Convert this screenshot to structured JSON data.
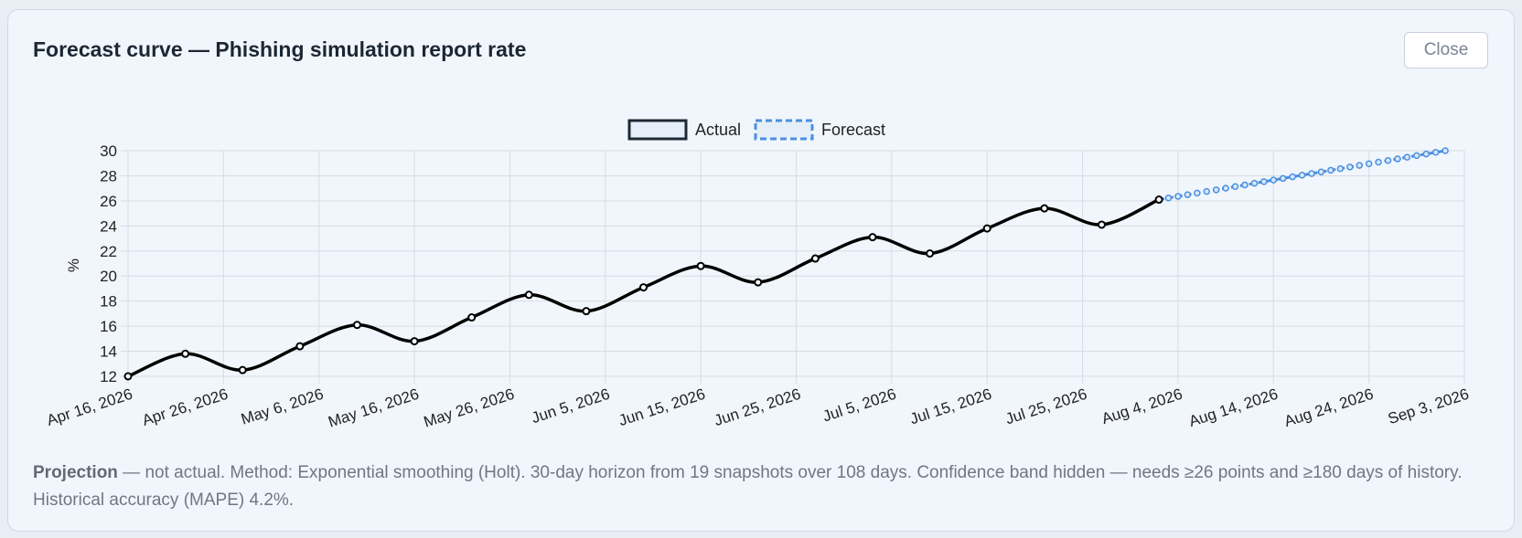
{
  "dialog": {
    "title": "Forecast curve — Phishing simulation report rate",
    "close_label": "Close"
  },
  "note": {
    "lead": "Projection",
    "text": " — not actual. Method: Exponential smoothing (Holt). 30-day horizon from 19 snapshots over 108 days. Confidence band hidden — needs ≥26 points and ≥180 days of history. Historical accuracy (MAPE) 4.2%."
  },
  "colors": {
    "actual": "#000000",
    "forecast": "#4a90e2",
    "grid": "#d7dce3"
  },
  "chart_data": {
    "type": "line",
    "title": "",
    "xlabel": "",
    "ylabel": "%",
    "ylim": [
      12,
      30
    ],
    "yticks": [
      12,
      14,
      16,
      18,
      20,
      22,
      24,
      26,
      28,
      30
    ],
    "xlim": [
      "2026-04-16",
      "2026-09-03"
    ],
    "xtick_labels": [
      "Apr 16, 2026",
      "Apr 26, 2026",
      "May 6, 2026",
      "May 16, 2026",
      "May 26, 2026",
      "Jun 5, 2026",
      "Jun 15, 2026",
      "Jun 25, 2026",
      "Jul 5, 2026",
      "Jul 15, 2026",
      "Jul 25, 2026",
      "Aug 4, 2026",
      "Aug 14, 2026",
      "Aug 24, 2026",
      "Sep 3, 2026"
    ],
    "grid": true,
    "legend_position": "top-center",
    "series": [
      {
        "name": "Actual",
        "style": "solid",
        "x": [
          "2026-04-16",
          "2026-04-22",
          "2026-04-28",
          "2026-05-04",
          "2026-05-10",
          "2026-05-16",
          "2026-05-22",
          "2026-05-28",
          "2026-06-03",
          "2026-06-09",
          "2026-06-15",
          "2026-06-21",
          "2026-06-27",
          "2026-07-03",
          "2026-07-09",
          "2026-07-15",
          "2026-07-21",
          "2026-07-27",
          "2026-08-02"
        ],
        "y": [
          12.0,
          13.8,
          12.5,
          14.4,
          16.1,
          14.8,
          16.7,
          18.5,
          17.2,
          19.1,
          20.8,
          19.5,
          21.4,
          23.1,
          21.8,
          23.8,
          25.4,
          24.1,
          26.1
        ]
      },
      {
        "name": "Forecast",
        "style": "dashed",
        "x": [
          "2026-08-02",
          "2026-08-03",
          "2026-08-04",
          "2026-08-05",
          "2026-08-06",
          "2026-08-07",
          "2026-08-08",
          "2026-08-09",
          "2026-08-10",
          "2026-08-11",
          "2026-08-12",
          "2026-08-13",
          "2026-08-14",
          "2026-08-15",
          "2026-08-16",
          "2026-08-17",
          "2026-08-18",
          "2026-08-19",
          "2026-08-20",
          "2026-08-21",
          "2026-08-22",
          "2026-08-23",
          "2026-08-24",
          "2026-08-25",
          "2026-08-26",
          "2026-08-27",
          "2026-08-28",
          "2026-08-29",
          "2026-08-30",
          "2026-08-31",
          "2026-09-01"
        ],
        "y": [
          26.1,
          26.23,
          26.36,
          26.49,
          26.62,
          26.75,
          26.88,
          27.01,
          27.14,
          27.27,
          27.4,
          27.53,
          27.66,
          27.79,
          27.92,
          28.05,
          28.18,
          28.31,
          28.44,
          28.57,
          28.7,
          28.83,
          28.96,
          29.09,
          29.22,
          29.35,
          29.48,
          29.61,
          29.74,
          29.87,
          30.0
        ]
      }
    ]
  }
}
